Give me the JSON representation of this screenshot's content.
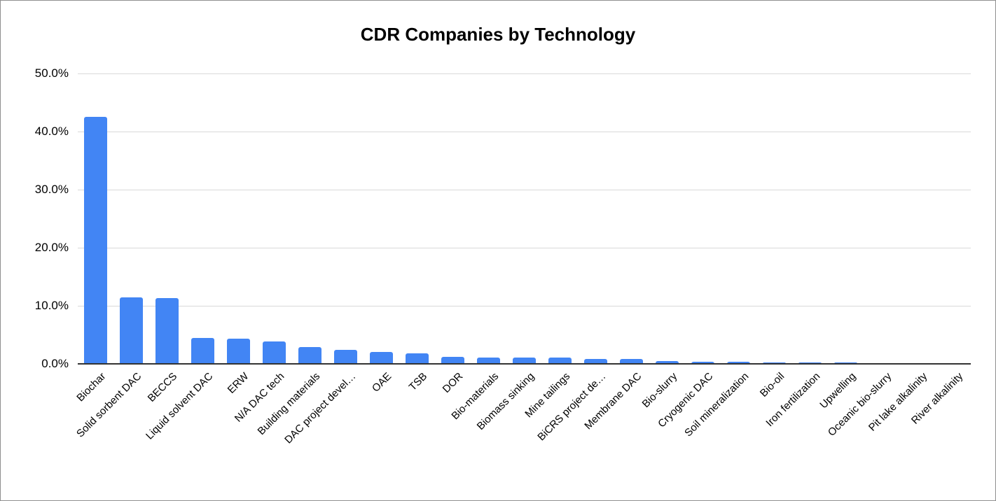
{
  "page": {
    "background": "#ffffff",
    "border_color": "#8f8f8f"
  },
  "chart_data": {
    "type": "bar",
    "title": "CDR Companies by Technology",
    "categories": [
      "Biochar",
      "Solid sorbent DAC",
      "BECCS",
      "Liquid solvent DAC",
      "ERW",
      "N/A DAC tech",
      "Building materials",
      "DAC project devel…",
      "OAE",
      "TSB",
      "DOR",
      "Bio-materials",
      "Biomass sinking",
      "Mine tailings",
      "BiCRS project de…",
      "Membrane DAC",
      "Bio-slurry",
      "Cryogenic DAC",
      "Soil mineralization",
      "Bio-oil",
      "Iron fertilization",
      "Upwelling",
      "Oceanic bio-slurry",
      "Pit lake alkalinity",
      "River alkalinity"
    ],
    "values": [
      42.5,
      11.5,
      11.3,
      4.5,
      4.3,
      3.8,
      2.9,
      2.4,
      2.1,
      1.8,
      1.2,
      1.1,
      1.1,
      1.1,
      0.9,
      0.9,
      0.5,
      0.4,
      0.35,
      0.3,
      0.25,
      0.25,
      0.12,
      0.1,
      0.1
    ],
    "value_unit": "%",
    "xlabel": "",
    "ylabel": "",
    "ylim": [
      0,
      50
    ],
    "y_tick_step": 10,
    "y_tick_labels": [
      "50.0%",
      "40.0%",
      "30.0%",
      "20.0%",
      "10.0%",
      "0.0%"
    ],
    "grid": "horizontal",
    "legend_position": "none",
    "bar_color": "#4285F4",
    "gridline_color": "#d9d9d9",
    "axis_line_color": "#333333",
    "text_color": "#000000"
  }
}
